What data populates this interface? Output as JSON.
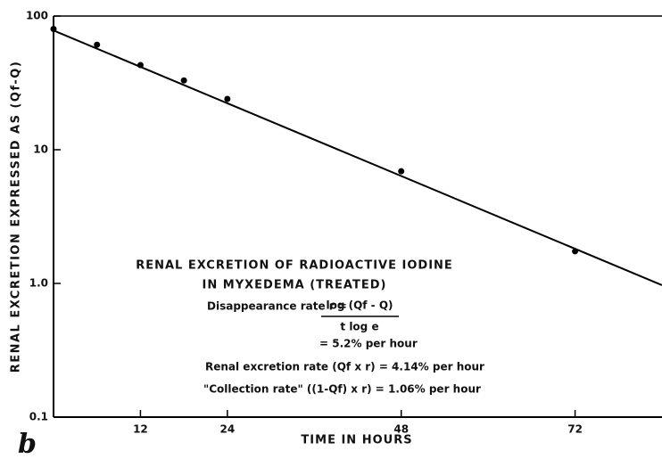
{
  "chart_data": {
    "type": "scatter",
    "panel_label": "b",
    "x_label": "TIME IN HOURS",
    "y_label": "RENAL EXCRETION EXPRESSED AS (Qf-Q)",
    "log_y": true,
    "color": "#000000",
    "xlim": [
      0,
      84
    ],
    "xticks": [
      12,
      24,
      48,
      72
    ],
    "ylim": [
      0.1,
      100
    ],
    "yticks": [
      0.1,
      {
        "value": 1,
        "label": "1.0"
      },
      10,
      100
    ],
    "points": {
      "x": [
        0,
        6,
        12,
        18,
        24,
        48,
        72
      ],
      "values": [
        80,
        61,
        43,
        33,
        24,
        6.9,
        1.74
      ]
    },
    "fit_line": {
      "x": [
        0,
        84
      ],
      "values": [
        78,
        0.97
      ]
    },
    "annotations": [
      "RENAL EXCRETION OF RADIOACTIVE IODINE",
      "IN MYXEDEMA (TREATED)",
      "Disappearance rate r =",
      "log (Qf - Q)",
      "t log e",
      "= 5.2% per hour",
      "Renal excretion rate (Qf x r) = 4.14% per hour",
      "\"Collection rate\" ((1-Qf) x r) = 1.06% per hour"
    ]
  }
}
